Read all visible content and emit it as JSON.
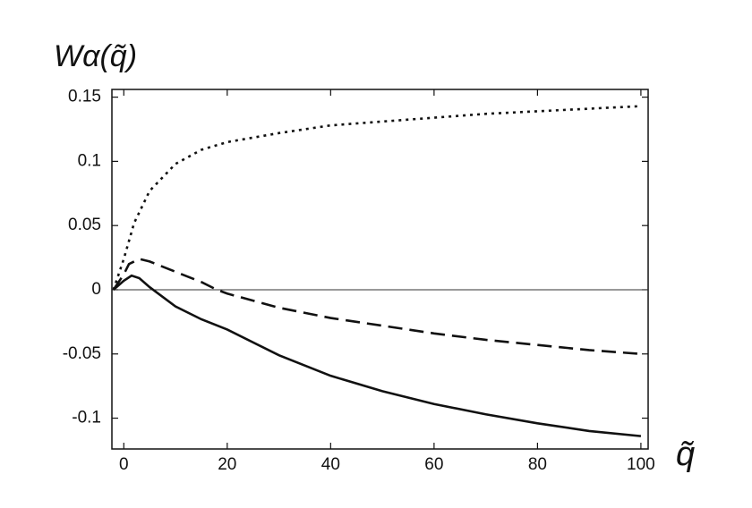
{
  "chart_data": {
    "type": "line",
    "ylabel": "Wα(q̃)",
    "xlabel": "q̃",
    "xlim": [
      -2.3,
      101.4
    ],
    "ylim": [
      -0.124,
      0.156
    ],
    "xticks": [
      0,
      20,
      40,
      60,
      80,
      100
    ],
    "yticks": [
      0.15,
      0.1,
      0.05,
      0,
      -0.05,
      -0.1
    ],
    "zero_line": true,
    "series": [
      {
        "color": "#111111",
        "style": "dotted",
        "x": [
          -2,
          0,
          2,
          5,
          10,
          15,
          20,
          30,
          40,
          50,
          60,
          70,
          80,
          90,
          100
        ],
        "values": [
          0,
          0.024,
          0.052,
          0.077,
          0.098,
          0.109,
          0.115,
          0.122,
          0.128,
          0.131,
          0.134,
          0.137,
          0.139,
          0.141,
          0.143
        ]
      },
      {
        "color": "#111111",
        "style": "dashed",
        "x": [
          -2,
          0,
          1,
          3,
          5,
          10,
          15,
          18,
          20,
          30,
          40,
          50,
          60,
          70,
          80,
          90,
          100
        ],
        "values": [
          0,
          0.012,
          0.02,
          0.024,
          0.022,
          0.014,
          0.006,
          0,
          -0.003,
          -0.014,
          -0.022,
          -0.028,
          -0.034,
          -0.039,
          -0.043,
          -0.047,
          -0.05
        ]
      },
      {
        "color": "#111111",
        "style": "solid",
        "x": [
          -2,
          0,
          1.5,
          3,
          5,
          10,
          15,
          20,
          30,
          40,
          50,
          60,
          70,
          80,
          90,
          100
        ],
        "values": [
          0,
          0.007,
          0.011,
          0.009,
          0.002,
          -0.013,
          -0.023,
          -0.031,
          -0.051,
          -0.067,
          -0.079,
          -0.089,
          -0.097,
          -0.104,
          -0.11,
          -0.114
        ]
      }
    ]
  }
}
